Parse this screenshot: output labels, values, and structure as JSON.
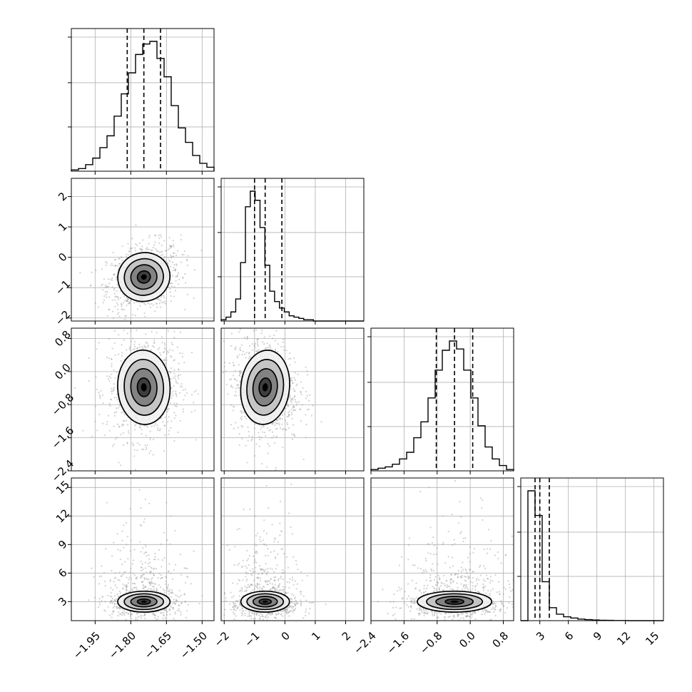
{
  "chart_data": {
    "type": "corner",
    "description_of_layout": "lower-triangular grid of 1D histograms (diagonal) and 2D density scatter/contour panels (off-diagonal)",
    "variables": [
      {
        "ticks": [
          -1.95,
          -1.8,
          -1.65,
          -1.5
        ],
        "tick_labels": [
          "−1.95",
          "−1.80",
          "−1.65",
          "−1.50"
        ],
        "range": [
          -2.05,
          -1.45
        ],
        "quantiles": [
          -1.815,
          -1.745,
          -1.675
        ],
        "mean": -1.745,
        "sd": 0.055
      },
      {
        "ticks": [
          -2,
          -1,
          0,
          1,
          2
        ],
        "tick_labels": [
          "−2",
          "−1",
          "0",
          "1",
          "2"
        ],
        "range": [
          -2.1,
          2.6
        ],
        "quantiles": [
          -1.0,
          -0.65,
          -0.1
        ],
        "mean": -0.65,
        "sd": 0.4
      },
      {
        "ticks": [
          -2.4,
          -1.6,
          -0.8,
          0.0,
          0.8
        ],
        "tick_labels": [
          "−2.4",
          "−1.6",
          "−0.8",
          "0.0",
          "0.8"
        ],
        "range": [
          -2.4,
          1.05
        ],
        "quantiles": [
          -0.82,
          -0.38,
          0.06
        ],
        "mean": -0.38,
        "sd": 0.45
      },
      {
        "ticks": [
          3,
          6,
          9,
          12,
          15
        ],
        "tick_labels": [
          "3",
          "6",
          "9",
          "12",
          "15"
        ],
        "range": [
          1.0,
          16.0
        ],
        "quantiles": [
          2.5,
          3.0,
          4.0
        ],
        "mean": 3.0,
        "sd": 0.8
      }
    ],
    "histograms": [
      {
        "variable": 0,
        "bin_edges_start": -2.05,
        "bin_width": 0.03,
        "heights": [
          0.01,
          0.02,
          0.05,
          0.1,
          0.18,
          0.27,
          0.42,
          0.59,
          0.75,
          0.89,
          0.97,
          0.99,
          0.86,
          0.72,
          0.5,
          0.33,
          0.22,
          0.12,
          0.06,
          0.03
        ]
      },
      {
        "variable": 1,
        "bin_edges_start": -2.1,
        "bin_width": 0.16,
        "heights": [
          0.01,
          0.03,
          0.07,
          0.17,
          0.45,
          0.88,
          1.0,
          0.93,
          0.72,
          0.43,
          0.23,
          0.15,
          0.1,
          0.07,
          0.04,
          0.03,
          0.02,
          0.01,
          0.01,
          0.0
        ]
      },
      {
        "variable": 2,
        "bin_edges_start": -2.4,
        "bin_width": 0.1725,
        "heights": [
          0.01,
          0.02,
          0.03,
          0.05,
          0.09,
          0.14,
          0.25,
          0.37,
          0.55,
          0.76,
          0.91,
          0.98,
          0.92,
          0.76,
          0.55,
          0.34,
          0.18,
          0.09,
          0.04,
          0.01
        ]
      },
      {
        "variable": 3,
        "bin_edges_start": 1.0,
        "bin_width": 0.75,
        "heights": [
          0.0,
          1.0,
          0.81,
          0.3,
          0.1,
          0.05,
          0.03,
          0.02,
          0.012,
          0.008,
          0.005,
          0.003,
          0.002,
          0.001,
          0.001,
          0.0,
          0.0,
          0.0,
          0.0,
          0.0
        ]
      }
    ],
    "scatter_pairs": [
      {
        "x_variable": 0,
        "y_variable": 1,
        "correlation": 0.25
      },
      {
        "x_variable": 0,
        "y_variable": 2,
        "correlation": 0.05
      },
      {
        "x_variable": 1,
        "y_variable": 2,
        "correlation": -0.1
      },
      {
        "x_variable": 0,
        "y_variable": 3,
        "correlation": 0.0
      },
      {
        "x_variable": 1,
        "y_variable": 3,
        "correlation": 0.0
      },
      {
        "x_variable": 2,
        "y_variable": 3,
        "correlation": 0.0
      }
    ],
    "contour_levels_sigma": [
      0.5,
      1.0,
      1.5,
      2.0
    ],
    "grid": true,
    "colors": {
      "line": "#000000",
      "grid": "#b0b0b0",
      "points": "#9a9a9a"
    }
  }
}
